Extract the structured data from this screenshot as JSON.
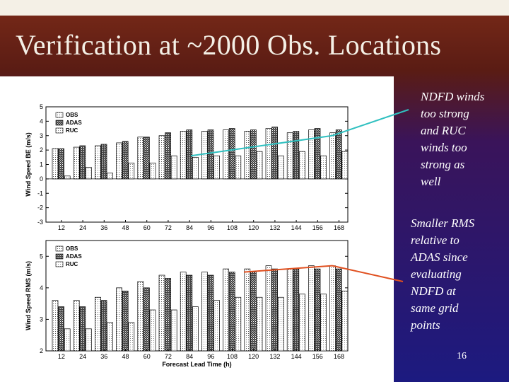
{
  "slide": {
    "title": "Verification at ~2000 Obs. Locations",
    "note_top": "NDFD winds\ntoo strong\nand RUC\nwinds too\nstrong as\nwell",
    "note_bottom": "Smaller RMS\nrelative to\nADAS since\nevaluating\nNDFD at\nsame grid\npoints",
    "slide_number": "16"
  },
  "colors": {
    "top_connector": "#30c0c0",
    "bottom_connector": "#e05020"
  },
  "chart_data": [
    {
      "type": "bar",
      "ylabel": "Wind Speed BE (m/s)",
      "xlabel": "",
      "categories": [
        "12",
        "24",
        "36",
        "48",
        "60",
        "72",
        "84",
        "96",
        "108",
        "120",
        "132",
        "144",
        "156",
        "168"
      ],
      "ylim": [
        -3,
        5
      ],
      "yticks": [
        "-3",
        "-2",
        "-1",
        "0",
        "1",
        "2",
        "3",
        "4",
        "5"
      ],
      "series": [
        {
          "name": "OBS",
          "values": [
            2.1,
            2.2,
            2.3,
            2.5,
            2.9,
            3.0,
            3.3,
            3.3,
            3.4,
            3.3,
            3.5,
            3.2,
            3.4,
            3.2
          ]
        },
        {
          "name": "ADAS",
          "values": [
            2.1,
            2.3,
            2.4,
            2.6,
            2.9,
            3.2,
            3.4,
            3.4,
            3.5,
            3.4,
            3.6,
            3.3,
            3.5,
            3.4
          ]
        },
        {
          "name": "RUC",
          "values": [
            0.2,
            0.8,
            0.4,
            1.1,
            1.1,
            1.6,
            1.5,
            1.6,
            1.6,
            1.9,
            1.6,
            1.9,
            1.6,
            1.9
          ]
        }
      ],
      "ndfd_line": [
        1.6,
        3.0
      ]
    },
    {
      "type": "bar",
      "ylabel": "Wind Speed RMS (m/s)",
      "xlabel": "Forecast Lead Time (h)",
      "categories": [
        "12",
        "24",
        "36",
        "48",
        "60",
        "72",
        "84",
        "96",
        "108",
        "120",
        "132",
        "144",
        "156",
        "168"
      ],
      "ylim": [
        2,
        5.5
      ],
      "yticks": [
        "2",
        "3",
        "4",
        "5"
      ],
      "series": [
        {
          "name": "OBS",
          "values": [
            3.6,
            3.6,
            3.7,
            4.0,
            4.2,
            4.4,
            4.5,
            4.5,
            4.6,
            4.6,
            4.7,
            4.6,
            4.7,
            4.7
          ]
        },
        {
          "name": "ADAS",
          "values": [
            3.4,
            3.4,
            3.6,
            3.9,
            4.0,
            4.3,
            4.4,
            4.4,
            4.5,
            4.5,
            4.6,
            4.6,
            4.6,
            4.6
          ]
        },
        {
          "name": "RUC",
          "values": [
            2.7,
            2.7,
            2.9,
            2.9,
            3.3,
            3.3,
            3.4,
            3.6,
            3.7,
            3.7,
            3.7,
            3.8,
            3.8,
            3.9
          ]
        }
      ],
      "ndfd_line": [
        4.5,
        4.7
      ]
    }
  ]
}
